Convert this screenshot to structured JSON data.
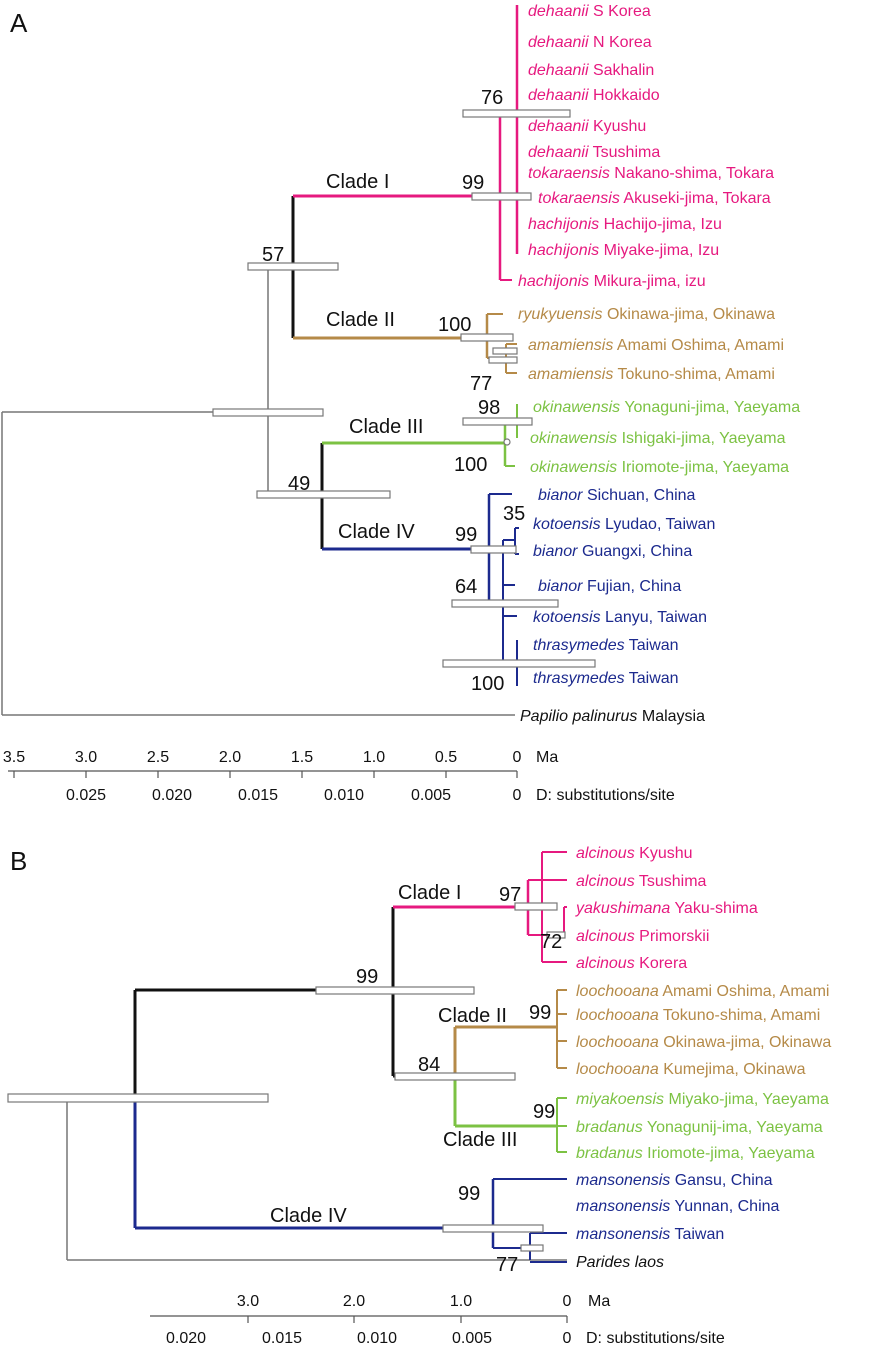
{
  "colors": {
    "clade1": "#e6197f",
    "clade2": "#b58a48",
    "clade3": "#7cc243",
    "clade4": "#1c2a8e",
    "outgroup": "#222222",
    "gray": "#777777"
  },
  "panelA": {
    "letter": "A",
    "clades": [
      "Clade I",
      "Clade II",
      "Clade III",
      "Clade IV"
    ],
    "support": [
      "76",
      "99",
      "57",
      "100",
      "77",
      "98",
      "100",
      "49",
      "99",
      "35",
      "64",
      "100"
    ],
    "taxa": [
      {
        "sp": "dehaanii",
        "loc": "S Korea"
      },
      {
        "sp": "dehaanii",
        "loc": "N Korea"
      },
      {
        "sp": "dehaanii",
        "loc": "Sakhalin"
      },
      {
        "sp": "dehaanii",
        "loc": "Hokkaido"
      },
      {
        "sp": "dehaanii",
        "loc": "Kyushu"
      },
      {
        "sp": "dehaanii",
        "loc": "Tsushima"
      },
      {
        "sp": "tokaraensis",
        "loc": "Nakano-shima, Tokara"
      },
      {
        "sp": "tokaraensis",
        "loc": "Akuseki-jima, Tokara"
      },
      {
        "sp": "hachijonis",
        "loc": "Hachijo-jima, Izu"
      },
      {
        "sp": "hachijonis",
        "loc": "Miyake-jima, Izu"
      },
      {
        "sp": "hachijonis",
        "loc": "Mikura-jima, izu"
      },
      {
        "sp": "ryukyuensis",
        "loc": "Okinawa-jima, Okinawa"
      },
      {
        "sp": "amamiensis",
        "loc": "Amami Oshima, Amami"
      },
      {
        "sp": "amamiensis",
        "loc": "Tokuno-shima, Amami"
      },
      {
        "sp": "okinawensis",
        "loc": "Yonaguni-jima, Yaeyama"
      },
      {
        "sp": "okinawensis",
        "loc": "Ishigaki-jima, Yaeyama"
      },
      {
        "sp": "okinawensis",
        "loc": "Iriomote-jima, Yaeyama"
      },
      {
        "sp": "bianor",
        "loc": "Sichuan, China"
      },
      {
        "sp": "kotoensis",
        "loc": "Lyudao, Taiwan"
      },
      {
        "sp": "bianor",
        "loc": "Guangxi, China"
      },
      {
        "sp": "bianor",
        "loc": "Fujian, China"
      },
      {
        "sp": "kotoensis",
        "loc": "Lanyu, Taiwan"
      },
      {
        "sp": "thrasymedes",
        "loc": "Taiwan"
      },
      {
        "sp": "thrasymedes",
        "loc": "Taiwan"
      },
      {
        "sp": "Papilio palinurus",
        "loc": "Malaysia"
      }
    ],
    "axis_top": {
      "ticks": [
        "3.5",
        "3.0",
        "2.5",
        "2.0",
        "1.5",
        "1.0",
        "0.5",
        "0"
      ],
      "unit": "Ma"
    },
    "axis_bottom": {
      "ticks": [
        "0.025",
        "0.020",
        "0.015",
        "0.010",
        "0.005",
        "0"
      ],
      "unit": "D: substitutions/site"
    }
  },
  "panelB": {
    "letter": "B",
    "clades": [
      "Clade I",
      "Clade II",
      "Clade III",
      "Clade IV"
    ],
    "support": [
      "97",
      "72",
      "99",
      "99",
      "84",
      "99",
      "99",
      "77"
    ],
    "taxa": [
      {
        "sp": "alcinous",
        "loc": "Kyushu"
      },
      {
        "sp": "alcinous",
        "loc": "Tsushima"
      },
      {
        "sp": "yakushimana",
        "loc": "Yaku-shima"
      },
      {
        "sp": "alcinous",
        "loc": "Primorskii"
      },
      {
        "sp": "alcinous",
        "loc": "Korera"
      },
      {
        "sp": "loochooana",
        "loc": "Amami Oshima, Amami"
      },
      {
        "sp": "loochooana",
        "loc": "Tokuno-shima, Amami"
      },
      {
        "sp": "loochooana",
        "loc": "Okinawa-jima, Okinawa"
      },
      {
        "sp": "loochooana",
        "loc": "Kumejima, Okinawa"
      },
      {
        "sp": "miyakoensis",
        "loc": "Miyako-jima, Yaeyama"
      },
      {
        "sp": "bradanus",
        "loc": "Yonagunij-ima, Yaeyama"
      },
      {
        "sp": "bradanus",
        "loc": "Iriomote-jima, Yaeyama"
      },
      {
        "sp": "mansonensis",
        "loc": "Gansu, China"
      },
      {
        "sp": "mansonensis",
        "loc": "Yunnan, China"
      },
      {
        "sp": "mansonensis",
        "loc": "Taiwan"
      },
      {
        "sp": "Parides laos",
        "loc": ""
      }
    ],
    "axis_top": {
      "ticks": [
        "3.0",
        "2.0",
        "1.0",
        "0"
      ],
      "unit": "Ma"
    },
    "axis_bottom": {
      "ticks": [
        "0.020",
        "0.015",
        "0.010",
        "0.005",
        "0"
      ],
      "unit": "D: substitutions/site"
    }
  }
}
